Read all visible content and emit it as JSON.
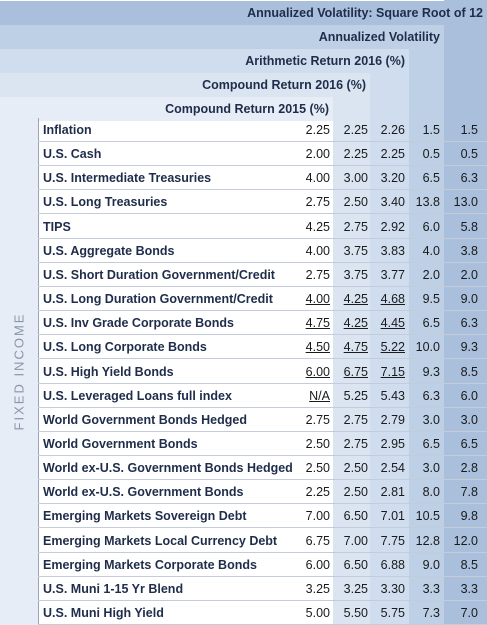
{
  "headers": {
    "h1": "Annualized Volatility: Square Root of 12",
    "h2": "Annualized Volatility",
    "h3": "Arithmetic Return 2016 (%)",
    "h4": "Compound Return 2016 (%)",
    "h5": "Compound Return 2015 (%)"
  },
  "section_label": "FIXED INCOME",
  "rows": [
    {
      "name": "Inflation",
      "v1": "2.25",
      "v2": "2.25",
      "v3": "2.26",
      "v4": "1.5",
      "v5": "1.5"
    },
    {
      "name": "U.S. Cash",
      "v1": "2.00",
      "v2": "2.25",
      "v3": "2.25",
      "v4": "0.5",
      "v5": "0.5"
    },
    {
      "name": "U.S. Intermediate Treasuries",
      "v1": "4.00",
      "v2": "3.00",
      "v3": "3.20",
      "v4": "6.5",
      "v5": "6.3"
    },
    {
      "name": "U.S. Long Treasuries",
      "v1": "2.75",
      "v2": "2.50",
      "v3": "3.40",
      "v4": "13.8",
      "v5": "13.0"
    },
    {
      "name": "TIPS",
      "v1": "4.25",
      "v2": "2.75",
      "v3": "2.92",
      "v4": "6.0",
      "v5": "5.8"
    },
    {
      "name": "U.S. Aggregate Bonds",
      "v1": "4.00",
      "v2": "3.75",
      "v3": "3.83",
      "v4": "4.0",
      "v5": "3.8"
    },
    {
      "name": "U.S. Short Duration Government/Credit",
      "v1": "2.75",
      "v2": "3.75",
      "v3": "3.77",
      "v4": "2.0",
      "v5": "2.0"
    },
    {
      "name": "U.S. Long Duration Government/Credit",
      "v1": "4.00",
      "v2": "4.25",
      "v3": "4.68",
      "v4": "9.5",
      "v5": "9.0"
    },
    {
      "name": "U.S. Inv Grade Corporate Bonds",
      "v1": "4.75",
      "v2": "4.25",
      "v3": "4.45",
      "v4": "6.5",
      "v5": "6.3"
    },
    {
      "name": "U.S. Long Corporate Bonds",
      "v1": "4.50",
      "v2": "4.75",
      "v3": "5.22",
      "v4": "10.0",
      "v5": "9.3"
    },
    {
      "name": "U.S. High Yield Bonds",
      "v1": "6.00",
      "v2": "6.75",
      "v3": "7.15",
      "v4": "9.3",
      "v5": "8.5"
    },
    {
      "name": "U.S. Leveraged Loans full index",
      "v1": "N/A",
      "v2": "5.25",
      "v3": "5.43",
      "v4": "6.3",
      "v5": "6.0"
    },
    {
      "name": "World Government Bonds Hedged",
      "v1": "2.75",
      "v2": "2.75",
      "v3": "2.79",
      "v4": "3.0",
      "v5": "3.0"
    },
    {
      "name": "World Government Bonds",
      "v1": "2.50",
      "v2": "2.75",
      "v3": "2.95",
      "v4": "6.5",
      "v5": "6.5"
    },
    {
      "name": "World ex-U.S. Government Bonds Hedged",
      "v1": "2.50",
      "v2": "2.50",
      "v3": "2.54",
      "v4": "3.0",
      "v5": "2.8"
    },
    {
      "name": "World ex-U.S. Government Bonds",
      "v1": "2.25",
      "v2": "2.50",
      "v3": "2.81",
      "v4": "8.0",
      "v5": "7.8"
    },
    {
      "name": "Emerging Markets Sovereign Debt",
      "v1": "7.00",
      "v2": "6.50",
      "v3": "7.01",
      "v4": "10.5",
      "v5": "9.8"
    },
    {
      "name": "Emerging Markets Local Currency Debt",
      "v1": "6.75",
      "v2": "7.00",
      "v3": "7.75",
      "v4": "12.8",
      "v5": "12.0"
    },
    {
      "name": "Emerging Markets Corporate Bonds",
      "v1": "6.00",
      "v2": "6.50",
      "v3": "6.88",
      "v4": "9.0",
      "v5": "8.5"
    },
    {
      "name": "U.S. Muni 1-15 Yr Blend",
      "v1": "3.25",
      "v2": "3.25",
      "v3": "3.30",
      "v4": "3.3",
      "v5": "3.3"
    },
    {
      "name": "U.S. Muni High Yield",
      "v1": "5.00",
      "v2": "5.50",
      "v3": "5.75",
      "v4": "7.3",
      "v5": "7.0"
    }
  ]
}
